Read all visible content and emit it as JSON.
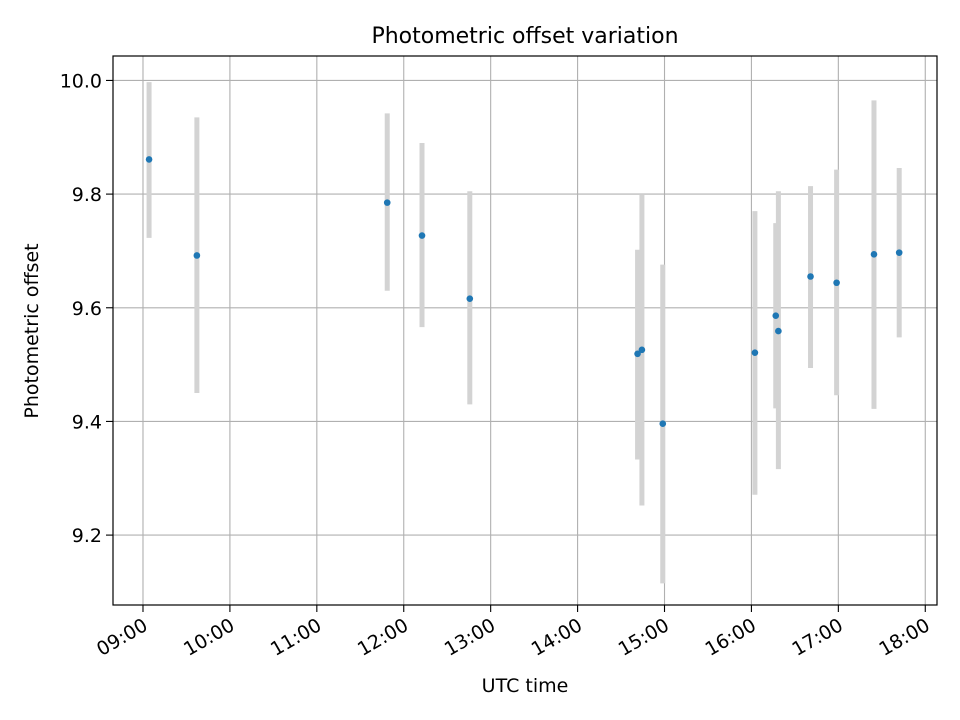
{
  "chart_data": {
    "type": "scatter",
    "title": "Photometric offset variation",
    "xlabel": "UTC time",
    "ylabel": "Photometric offset",
    "x_unit": "hour of day (UTC)",
    "xlim": [
      8.655,
      18.135
    ],
    "ylim": [
      9.077,
      10.043
    ],
    "grid": true,
    "x_ticks": [
      {
        "value": 9,
        "label": "09:00"
      },
      {
        "value": 10,
        "label": "10:00"
      },
      {
        "value": 11,
        "label": "11:00"
      },
      {
        "value": 12,
        "label": "12:00"
      },
      {
        "value": 13,
        "label": "13:00"
      },
      {
        "value": 14,
        "label": "14:00"
      },
      {
        "value": 15,
        "label": "15:00"
      },
      {
        "value": 16,
        "label": "16:00"
      },
      {
        "value": 17,
        "label": "17:00"
      },
      {
        "value": 18,
        "label": "18:00"
      }
    ],
    "y_ticks": [
      {
        "value": 9.2,
        "label": "9.2"
      },
      {
        "value": 9.4,
        "label": "9.4"
      },
      {
        "value": 9.6,
        "label": "9.6"
      },
      {
        "value": 9.8,
        "label": "9.8"
      },
      {
        "value": 10.0,
        "label": "10.0"
      }
    ],
    "colors": {
      "point": "#1f77b4",
      "errorbar": "#d3d3d3",
      "grid": "#b0b0b0"
    },
    "points": [
      {
        "x": 9.07,
        "y": 9.861,
        "ylow": 9.723,
        "yhigh": 9.997
      },
      {
        "x": 9.62,
        "y": 9.692,
        "ylow": 9.45,
        "yhigh": 9.935
      },
      {
        "x": 11.81,
        "y": 9.785,
        "ylow": 9.63,
        "yhigh": 9.942
      },
      {
        "x": 12.21,
        "y": 9.727,
        "ylow": 9.566,
        "yhigh": 9.89
      },
      {
        "x": 12.76,
        "y": 9.616,
        "ylow": 9.43,
        "yhigh": 9.805
      },
      {
        "x": 14.69,
        "y": 9.519,
        "ylow": 9.333,
        "yhigh": 9.702
      },
      {
        "x": 14.74,
        "y": 9.526,
        "ylow": 9.252,
        "yhigh": 9.8
      },
      {
        "x": 14.98,
        "y": 9.396,
        "ylow": 9.115,
        "yhigh": 9.676
      },
      {
        "x": 16.04,
        "y": 9.521,
        "ylow": 9.271,
        "yhigh": 9.77
      },
      {
        "x": 16.28,
        "y": 9.586,
        "ylow": 9.423,
        "yhigh": 9.749
      },
      {
        "x": 16.31,
        "y": 9.559,
        "ylow": 9.316,
        "yhigh": 9.805
      },
      {
        "x": 16.68,
        "y": 9.655,
        "ylow": 9.494,
        "yhigh": 9.814
      },
      {
        "x": 16.98,
        "y": 9.644,
        "ylow": 9.446,
        "yhigh": 9.843
      },
      {
        "x": 17.41,
        "y": 9.694,
        "ylow": 9.422,
        "yhigh": 9.965
      },
      {
        "x": 17.7,
        "y": 9.697,
        "ylow": 9.548,
        "yhigh": 9.846
      }
    ]
  }
}
